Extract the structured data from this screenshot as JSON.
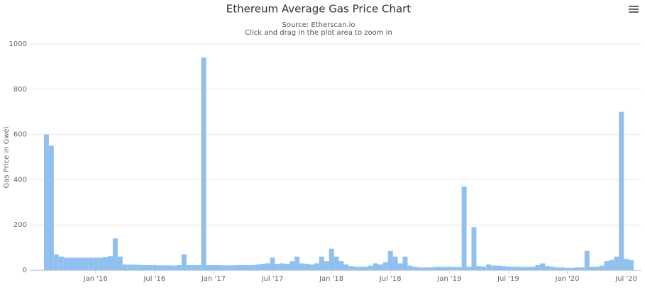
{
  "chart_data": {
    "type": "bar",
    "title": "Ethereum Average Gas Price Chart",
    "subtitle": [
      "Source: Etherscan.io",
      "Click and drag in the plot area to zoom in"
    ],
    "y_label": "Gas Price in Gwei",
    "color": "#8fc0ee",
    "ylim": [
      0,
      1000
    ],
    "yticks": [
      0,
      200,
      400,
      600,
      800,
      1000
    ],
    "grid": true,
    "categories": [
      null,
      null,
      null,
      null,
      null,
      null,
      null,
      null,
      null,
      null,
      "Jan '16",
      null,
      null,
      null,
      null,
      null,
      null,
      null,
      null,
      null,
      null,
      null,
      "Jul '16",
      null,
      null,
      null,
      null,
      null,
      null,
      null,
      null,
      null,
      null,
      null,
      "Jan '17",
      null,
      null,
      null,
      null,
      null,
      null,
      null,
      null,
      null,
      null,
      null,
      "Jul '17",
      null,
      null,
      null,
      null,
      null,
      null,
      null,
      null,
      null,
      null,
      null,
      "Jan '18",
      null,
      null,
      null,
      null,
      null,
      null,
      null,
      null,
      null,
      null,
      null,
      "Jul '18",
      null,
      null,
      null,
      null,
      null,
      null,
      null,
      null,
      null,
      null,
      null,
      "Jan '19",
      null,
      null,
      null,
      null,
      null,
      null,
      null,
      null,
      null,
      null,
      null,
      "Jul '19",
      null,
      null,
      null,
      null,
      null,
      null,
      null,
      null,
      null,
      null,
      null,
      "Jan '20",
      null,
      null,
      null,
      null,
      null,
      null,
      null,
      null,
      null,
      null,
      null,
      "Jul '20",
      null
    ],
    "values": [
      600,
      550,
      70,
      60,
      55,
      55,
      55,
      55,
      55,
      55,
      55,
      55,
      58,
      62,
      140,
      60,
      25,
      24,
      24,
      23,
      22,
      22,
      22,
      21,
      21,
      21,
      20,
      22,
      70,
      22,
      22,
      22,
      940,
      22,
      22,
      22,
      21,
      21,
      21,
      22,
      22,
      22,
      22,
      25,
      28,
      30,
      55,
      28,
      30,
      28,
      40,
      60,
      30,
      28,
      25,
      30,
      60,
      40,
      95,
      60,
      40,
      25,
      18,
      15,
      15,
      15,
      20,
      30,
      25,
      35,
      85,
      60,
      30,
      60,
      20,
      15,
      12,
      12,
      12,
      14,
      15,
      14,
      15,
      14,
      14,
      370,
      15,
      190,
      18,
      16,
      25,
      20,
      20,
      18,
      16,
      15,
      15,
      14,
      14,
      15,
      22,
      30,
      18,
      15,
      12,
      12,
      10,
      10,
      12,
      12,
      85,
      15,
      15,
      20,
      40,
      45,
      60,
      700,
      50,
      45
    ]
  }
}
